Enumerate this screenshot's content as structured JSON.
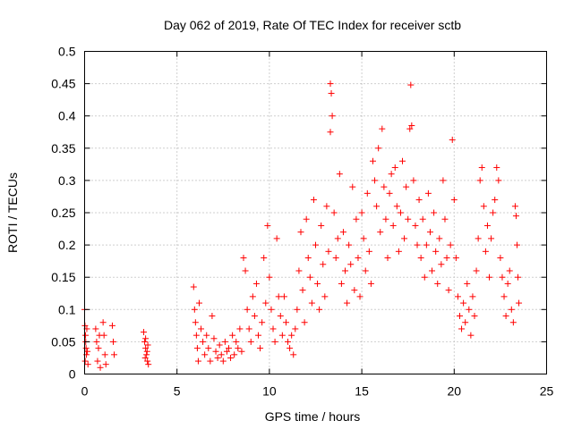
{
  "chart_data": {
    "type": "scatter",
    "title": "Day 062 of 2019, Rate Of TEC Index for receiver sctb",
    "xlabel": "GPS time / hours",
    "ylabel": "ROTI / TECUs",
    "xlim": [
      0,
      25
    ],
    "ylim": [
      0,
      0.5
    ],
    "grid": true,
    "marker": "+",
    "marker_color": "#ff0000",
    "x_ticks": [
      0,
      5,
      10,
      15,
      20,
      25
    ],
    "x_tick_labels": [
      "0",
      "5",
      "10",
      "15",
      "20",
      "25"
    ],
    "y_ticks": [
      0,
      0.05,
      0.1,
      0.15,
      0.2,
      0.25,
      0.3,
      0.35,
      0.4,
      0.45,
      0.5
    ],
    "y_tick_labels": [
      "0",
      "0.05",
      "0.1",
      "0.15",
      "0.2",
      "0.25",
      "0.3",
      "0.35",
      "0.4",
      "0.45",
      "0.5"
    ],
    "series": [
      {
        "name": "ROTI",
        "points": [
          [
            0.0,
            0.1
          ],
          [
            0.02,
            0.075
          ],
          [
            0.05,
            0.06
          ],
          [
            0.08,
            0.04
          ],
          [
            0.1,
            0.03
          ],
          [
            0.03,
            0.02
          ],
          [
            0.06,
            0.05
          ],
          [
            0.12,
            0.07
          ],
          [
            0.15,
            0.035
          ],
          [
            0.18,
            0.015
          ],
          [
            0.6,
            0.07
          ],
          [
            0.65,
            0.05
          ],
          [
            0.7,
            0.02
          ],
          [
            0.75,
            0.04
          ],
          [
            0.8,
            0.06
          ],
          [
            0.85,
            0.01
          ],
          [
            1.0,
            0.08
          ],
          [
            1.05,
            0.06
          ],
          [
            1.1,
            0.03
          ],
          [
            1.15,
            0.015
          ],
          [
            1.5,
            0.075
          ],
          [
            1.55,
            0.05
          ],
          [
            1.6,
            0.03
          ],
          [
            3.2,
            0.065
          ],
          [
            3.25,
            0.05
          ],
          [
            3.3,
            0.04
          ],
          [
            3.35,
            0.03
          ],
          [
            3.4,
            0.02
          ],
          [
            3.45,
            0.015
          ],
          [
            3.3,
            0.055
          ],
          [
            3.38,
            0.035
          ],
          [
            3.42,
            0.045
          ],
          [
            3.28,
            0.025
          ],
          [
            5.9,
            0.135
          ],
          [
            5.95,
            0.1
          ],
          [
            6.0,
            0.08
          ],
          [
            6.05,
            0.06
          ],
          [
            6.1,
            0.04
          ],
          [
            6.15,
            0.02
          ],
          [
            6.2,
            0.11
          ],
          [
            6.3,
            0.07
          ],
          [
            6.4,
            0.05
          ],
          [
            6.5,
            0.03
          ],
          [
            6.6,
            0.06
          ],
          [
            6.7,
            0.04
          ],
          [
            6.8,
            0.02
          ],
          [
            6.9,
            0.09
          ],
          [
            7.0,
            0.055
          ],
          [
            7.1,
            0.035
          ],
          [
            7.2,
            0.025
          ],
          [
            7.3,
            0.045
          ],
          [
            7.4,
            0.03
          ],
          [
            7.5,
            0.02
          ],
          [
            7.6,
            0.05
          ],
          [
            7.7,
            0.035
          ],
          [
            7.8,
            0.04
          ],
          [
            7.9,
            0.025
          ],
          [
            8.0,
            0.06
          ],
          [
            8.1,
            0.03
          ],
          [
            8.2,
            0.05
          ],
          [
            8.3,
            0.04
          ],
          [
            8.4,
            0.07
          ],
          [
            8.5,
            0.035
          ],
          [
            8.6,
            0.18
          ],
          [
            8.7,
            0.16
          ],
          [
            8.8,
            0.1
          ],
          [
            8.9,
            0.07
          ],
          [
            9.0,
            0.05
          ],
          [
            9.1,
            0.12
          ],
          [
            9.2,
            0.09
          ],
          [
            9.3,
            0.14
          ],
          [
            9.4,
            0.06
          ],
          [
            9.5,
            0.04
          ],
          [
            9.6,
            0.08
          ],
          [
            9.7,
            0.18
          ],
          [
            9.8,
            0.11
          ],
          [
            9.9,
            0.23
          ],
          [
            10.0,
            0.15
          ],
          [
            10.1,
            0.1
          ],
          [
            10.2,
            0.07
          ],
          [
            10.3,
            0.05
          ],
          [
            10.4,
            0.21
          ],
          [
            10.5,
            0.12
          ],
          [
            10.6,
            0.09
          ],
          [
            10.7,
            0.06
          ],
          [
            10.8,
            0.12
          ],
          [
            10.9,
            0.08
          ],
          [
            11.0,
            0.05
          ],
          [
            11.1,
            0.04
          ],
          [
            11.2,
            0.06
          ],
          [
            11.3,
            0.03
          ],
          [
            11.4,
            0.07
          ],
          [
            11.5,
            0.1
          ],
          [
            11.6,
            0.16
          ],
          [
            11.7,
            0.22
          ],
          [
            11.8,
            0.13
          ],
          [
            11.9,
            0.08
          ],
          [
            12.0,
            0.24
          ],
          [
            12.1,
            0.18
          ],
          [
            12.2,
            0.15
          ],
          [
            12.3,
            0.11
          ],
          [
            12.4,
            0.27
          ],
          [
            12.5,
            0.2
          ],
          [
            12.6,
            0.14
          ],
          [
            12.7,
            0.1
          ],
          [
            12.8,
            0.23
          ],
          [
            12.9,
            0.17
          ],
          [
            13.0,
            0.12
          ],
          [
            13.1,
            0.26
          ],
          [
            13.2,
            0.19
          ],
          [
            13.3,
            0.45
          ],
          [
            13.35,
            0.435
          ],
          [
            13.4,
            0.4
          ],
          [
            13.3,
            0.375
          ],
          [
            13.5,
            0.25
          ],
          [
            13.6,
            0.18
          ],
          [
            13.7,
            0.21
          ],
          [
            13.8,
            0.31
          ],
          [
            13.9,
            0.14
          ],
          [
            14.0,
            0.22
          ],
          [
            14.1,
            0.16
          ],
          [
            14.2,
            0.11
          ],
          [
            14.3,
            0.2
          ],
          [
            14.4,
            0.17
          ],
          [
            14.5,
            0.29
          ],
          [
            14.6,
            0.13
          ],
          [
            14.7,
            0.24
          ],
          [
            14.8,
            0.18
          ],
          [
            14.9,
            0.12
          ],
          [
            15.0,
            0.25
          ],
          [
            15.1,
            0.21
          ],
          [
            15.2,
            0.16
          ],
          [
            15.3,
            0.28
          ],
          [
            15.4,
            0.19
          ],
          [
            15.5,
            0.14
          ],
          [
            15.6,
            0.33
          ],
          [
            15.7,
            0.3
          ],
          [
            15.8,
            0.26
          ],
          [
            15.9,
            0.35
          ],
          [
            16.0,
            0.22
          ],
          [
            16.1,
            0.38
          ],
          [
            16.2,
            0.29
          ],
          [
            16.3,
            0.24
          ],
          [
            16.4,
            0.18
          ],
          [
            16.5,
            0.28
          ],
          [
            16.6,
            0.31
          ],
          [
            16.7,
            0.23
          ],
          [
            16.8,
            0.32
          ],
          [
            16.9,
            0.26
          ],
          [
            17.0,
            0.19
          ],
          [
            17.1,
            0.25
          ],
          [
            17.2,
            0.33
          ],
          [
            17.3,
            0.21
          ],
          [
            17.4,
            0.29
          ],
          [
            17.5,
            0.24
          ],
          [
            17.6,
            0.38
          ],
          [
            17.7,
            0.385
          ],
          [
            17.65,
            0.448
          ],
          [
            17.8,
            0.3
          ],
          [
            17.9,
            0.23
          ],
          [
            18.0,
            0.2
          ],
          [
            18.1,
            0.27
          ],
          [
            18.2,
            0.18
          ],
          [
            18.3,
            0.24
          ],
          [
            18.4,
            0.15
          ],
          [
            18.5,
            0.2
          ],
          [
            18.6,
            0.28
          ],
          [
            18.7,
            0.22
          ],
          [
            18.8,
            0.16
          ],
          [
            18.9,
            0.25
          ],
          [
            19.0,
            0.19
          ],
          [
            19.1,
            0.14
          ],
          [
            19.2,
            0.21
          ],
          [
            19.3,
            0.17
          ],
          [
            19.4,
            0.3
          ],
          [
            19.5,
            0.24
          ],
          [
            19.6,
            0.18
          ],
          [
            19.7,
            0.13
          ],
          [
            19.8,
            0.2
          ],
          [
            19.9,
            0.363
          ],
          [
            20.0,
            0.27
          ],
          [
            20.1,
            0.18
          ],
          [
            20.2,
            0.12
          ],
          [
            20.3,
            0.09
          ],
          [
            20.4,
            0.07
          ],
          [
            20.5,
            0.11
          ],
          [
            20.6,
            0.08
          ],
          [
            20.7,
            0.14
          ],
          [
            20.8,
            0.1
          ],
          [
            20.9,
            0.06
          ],
          [
            21.0,
            0.12
          ],
          [
            21.1,
            0.09
          ],
          [
            21.2,
            0.16
          ],
          [
            21.3,
            0.21
          ],
          [
            21.4,
            0.3
          ],
          [
            21.5,
            0.32
          ],
          [
            21.6,
            0.26
          ],
          [
            21.7,
            0.19
          ],
          [
            21.8,
            0.23
          ],
          [
            21.9,
            0.15
          ],
          [
            22.0,
            0.21
          ],
          [
            22.1,
            0.25
          ],
          [
            22.2,
            0.27
          ],
          [
            22.3,
            0.32
          ],
          [
            22.4,
            0.3
          ],
          [
            22.5,
            0.18
          ],
          [
            22.6,
            0.15
          ],
          [
            22.7,
            0.12
          ],
          [
            22.8,
            0.09
          ],
          [
            22.9,
            0.14
          ],
          [
            23.0,
            0.16
          ],
          [
            23.1,
            0.1
          ],
          [
            23.2,
            0.08
          ],
          [
            23.3,
            0.26
          ],
          [
            23.35,
            0.245
          ],
          [
            23.4,
            0.2
          ],
          [
            23.45,
            0.15
          ],
          [
            23.5,
            0.11
          ]
        ]
      }
    ]
  }
}
